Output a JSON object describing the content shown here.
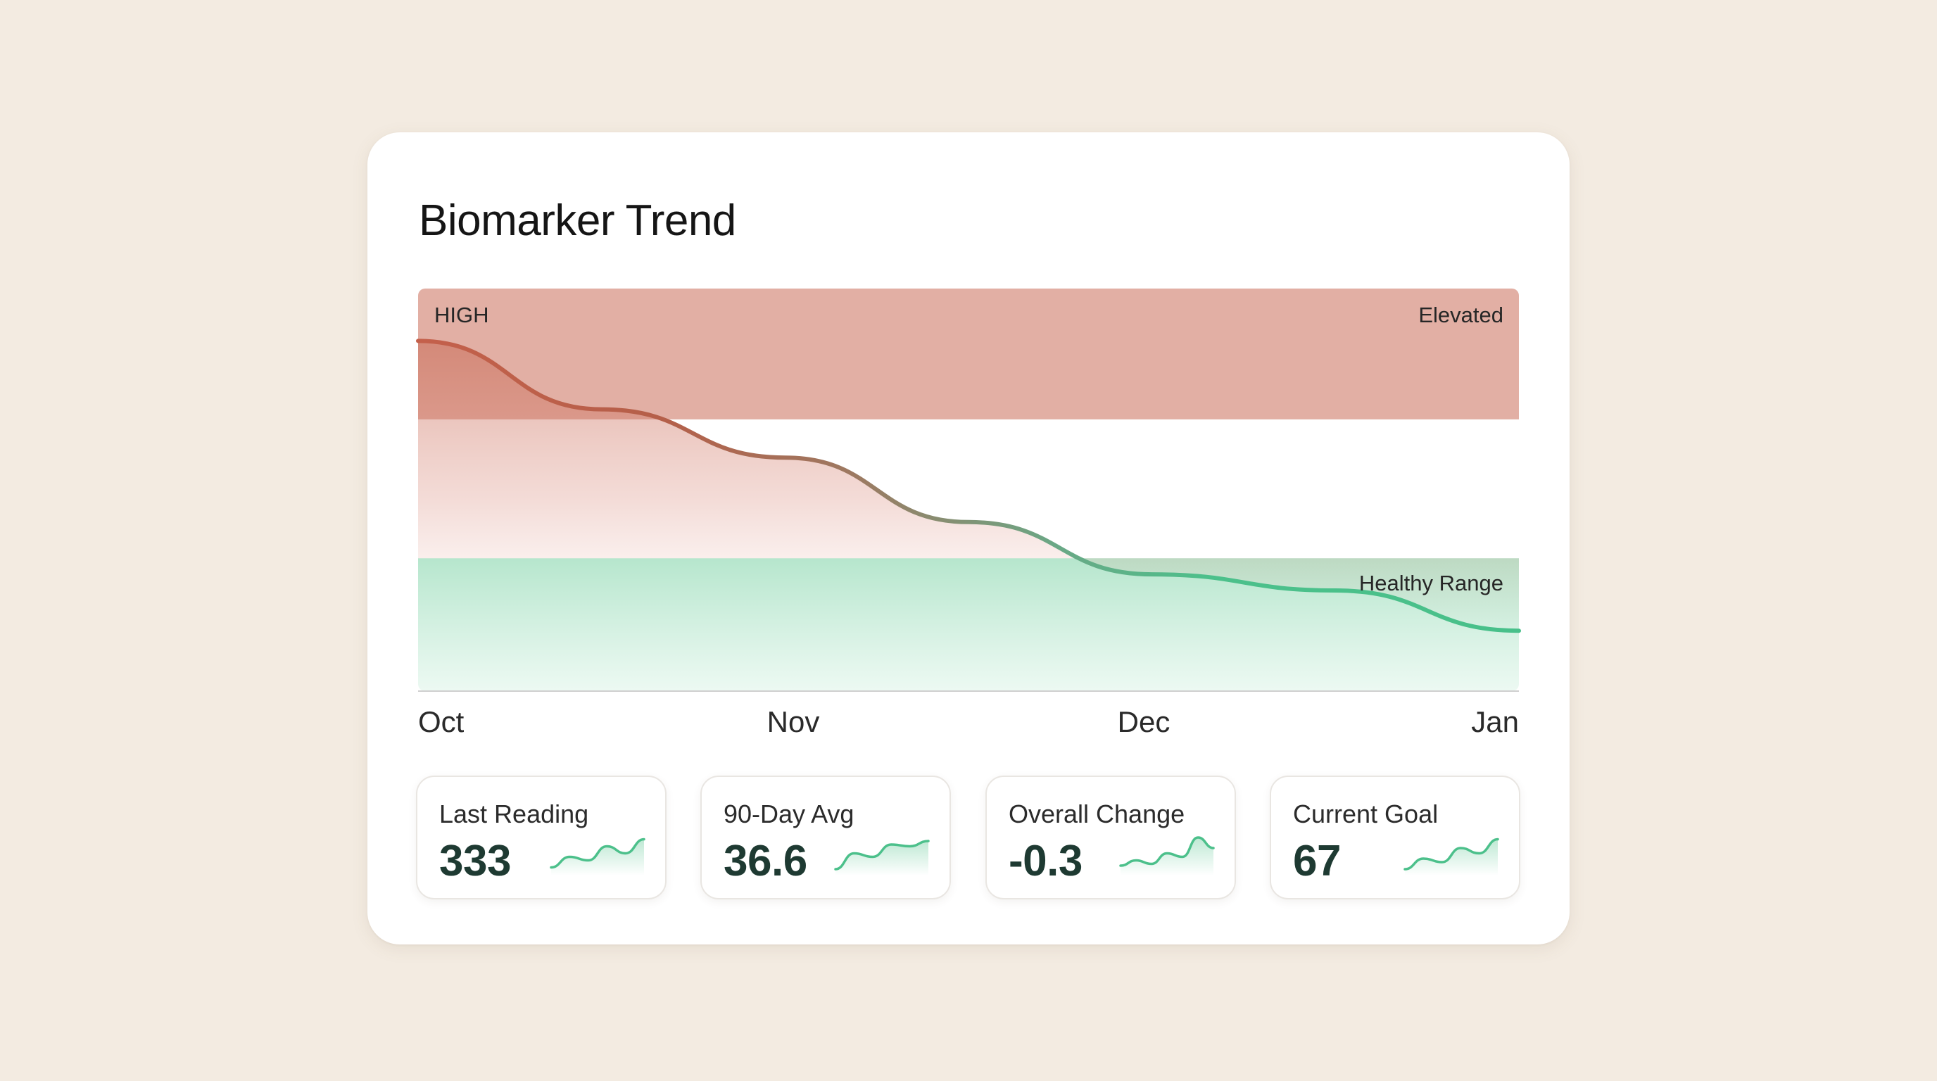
{
  "title": "Biomarker Trend",
  "colors": {
    "background": "#f3ebe1",
    "card": "#ffffff",
    "elevated_band": "#e2afa4",
    "healthy_band": "#bfe9d3",
    "trend_high": "#c4604b",
    "trend_low": "#4cc08b",
    "value_text": "#1e3a32"
  },
  "chart_data": {
    "type": "line",
    "title": "Biomarker Trend",
    "x_labels": [
      "Oct",
      "Nov",
      "Dec",
      "Jan"
    ],
    "x": [
      0,
      0.5,
      1,
      1.5,
      2,
      2.5,
      3
    ],
    "values": [
      0.87,
      0.7,
      0.58,
      0.42,
      0.29,
      0.25,
      0.15
    ],
    "ylim": [
      0,
      1
    ],
    "y_axis_label": "HIGH",
    "bands": [
      {
        "label": "Elevated",
        "from": 0.675,
        "to": 1.0
      },
      {
        "label": "Healthy Range",
        "from": 0.0,
        "to": 0.33
      }
    ],
    "grid": false,
    "legend": "none"
  },
  "stats": [
    {
      "label": "Last Reading",
      "value": "333",
      "spark": [
        0.15,
        0.45,
        0.35,
        0.75,
        0.55,
        0.95
      ]
    },
    {
      "label": "90-Day Avg",
      "value": "36.6",
      "spark": [
        0.1,
        0.55,
        0.45,
        0.8,
        0.75,
        0.9
      ]
    },
    {
      "label": "Overall Change",
      "value": "-0.3",
      "spark": [
        0.2,
        0.35,
        0.25,
        0.55,
        0.45,
        1.0,
        0.7
      ]
    },
    {
      "label": "Current Goal",
      "value": "67",
      "spark": [
        0.1,
        0.4,
        0.3,
        0.7,
        0.55,
        0.95
      ]
    }
  ]
}
